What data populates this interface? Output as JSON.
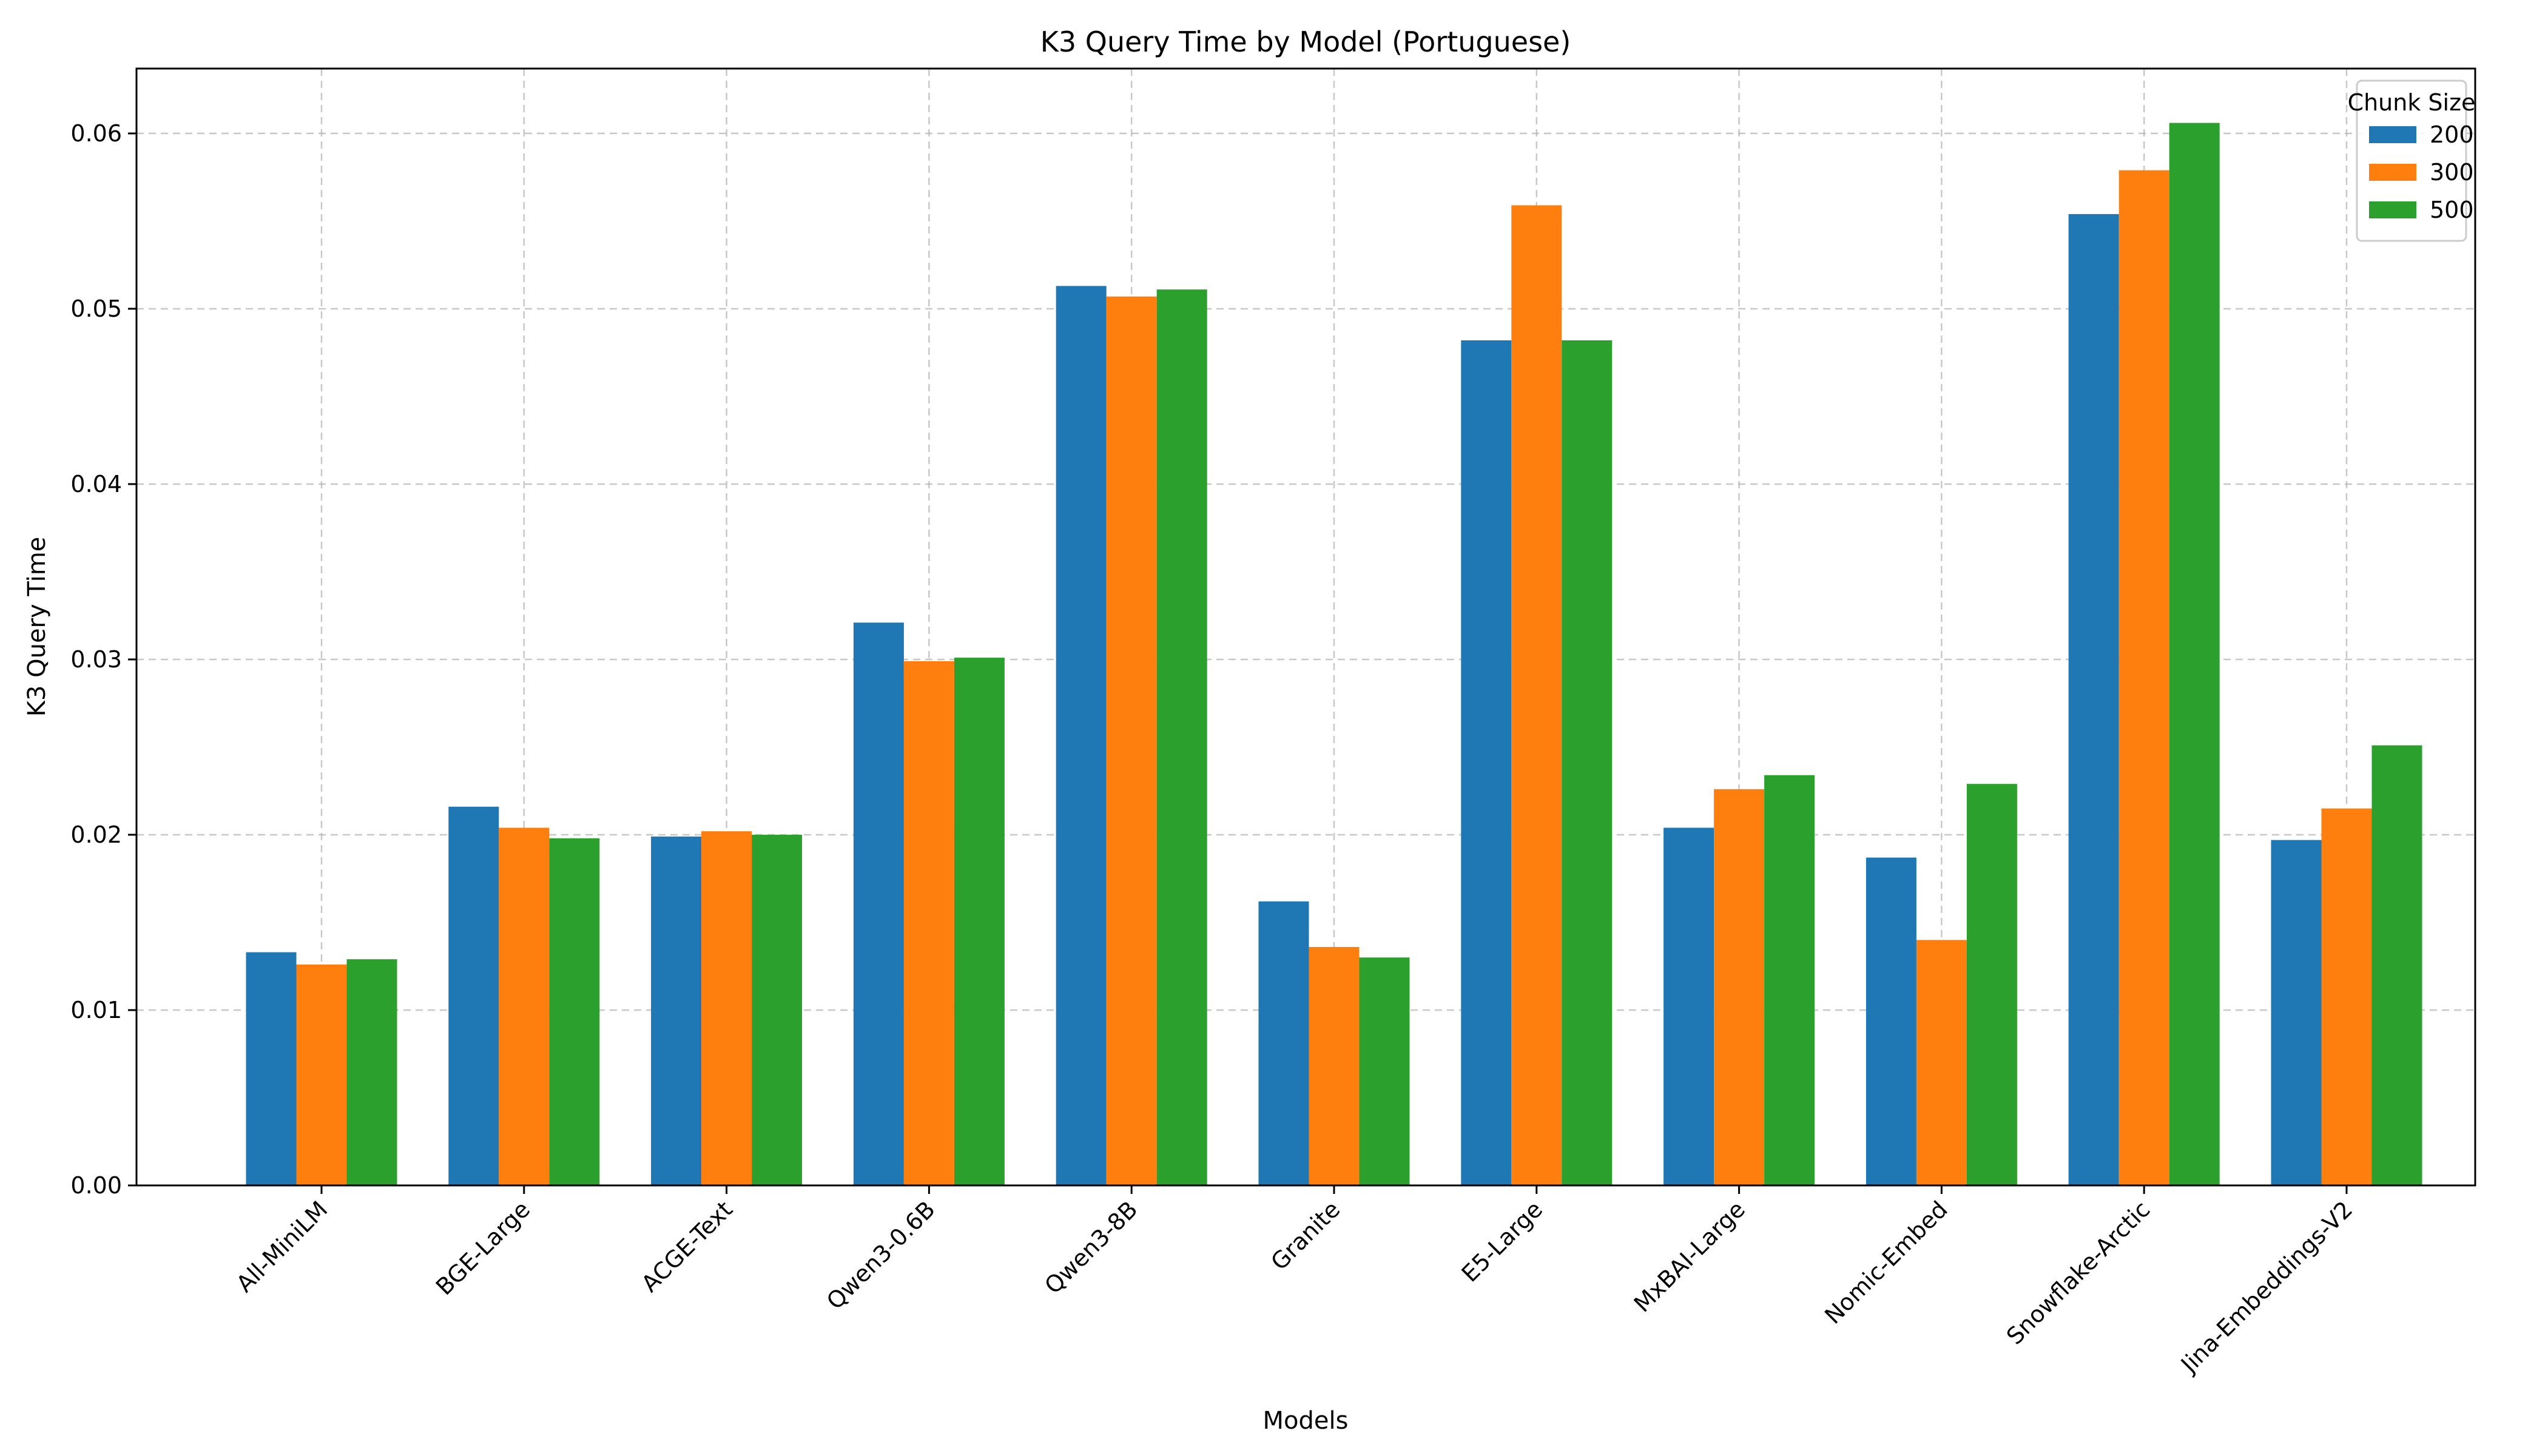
{
  "chart_data": {
    "type": "bar",
    "title": "K3 Query Time by Model (Portuguese)",
    "xlabel": "Models",
    "ylabel": "K3 Query Time",
    "ylim": [
      0,
      0.0637
    ],
    "yticks": [
      "0.00",
      "0.01",
      "0.02",
      "0.03",
      "0.04",
      "0.05",
      "0.06"
    ],
    "grid": true,
    "legend_title": "Chunk Size",
    "legend_position": "top-right",
    "categories": [
      "All-MiniLM",
      "BGE-Large",
      "ACGE-Text",
      "Qwen3-0.6B",
      "Qwen3-8B",
      "Granite",
      "E5-Large",
      "MxBAI-Large",
      "Nomic-Embed",
      "Snowflake-Arctic",
      "Jina-Embeddings-V2"
    ],
    "series": [
      {
        "name": "200",
        "color": "#1f77b4",
        "values": [
          0.0133,
          0.0216,
          0.0199,
          0.0321,
          0.0513,
          0.0162,
          0.0482,
          0.0204,
          0.0187,
          0.0554,
          0.0197
        ]
      },
      {
        "name": "300",
        "color": "#ff7f0e",
        "values": [
          0.0126,
          0.0204,
          0.0202,
          0.0299,
          0.0507,
          0.0136,
          0.0559,
          0.0226,
          0.014,
          0.0579,
          0.0215
        ]
      },
      {
        "name": "500",
        "color": "#2ca02c",
        "values": [
          0.0129,
          0.0198,
          0.02,
          0.0301,
          0.0511,
          0.013,
          0.0482,
          0.0234,
          0.0229,
          0.0606,
          0.0251
        ]
      }
    ]
  }
}
